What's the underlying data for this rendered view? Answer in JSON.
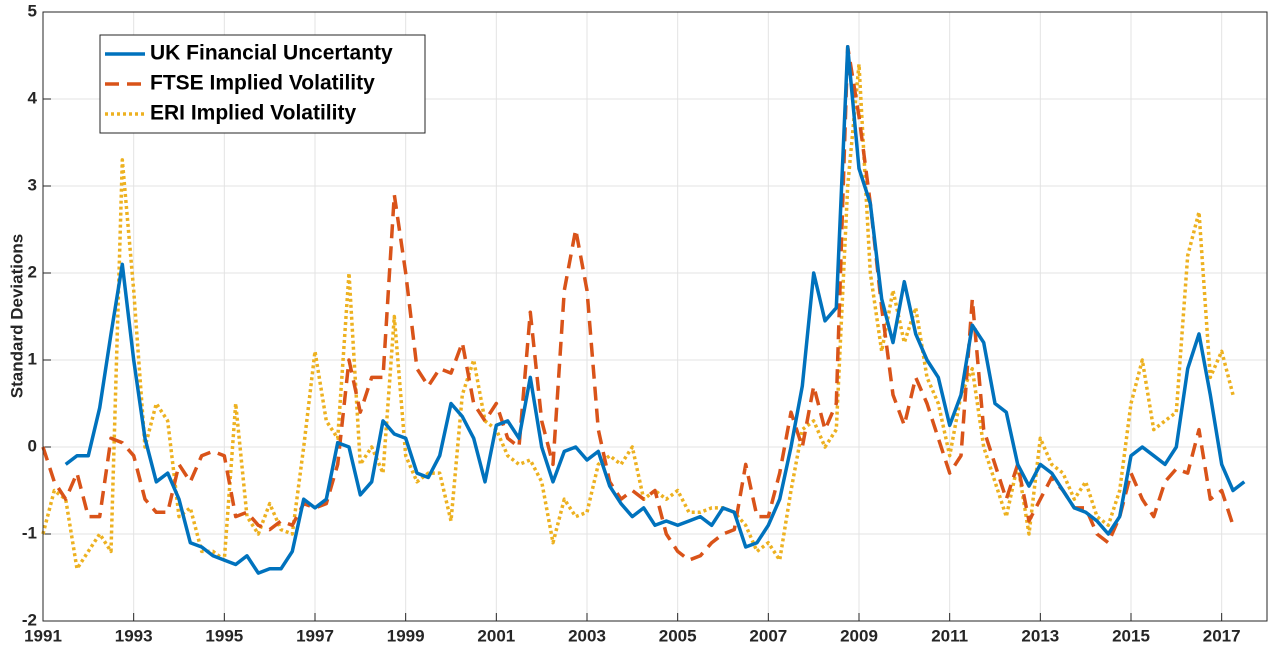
{
  "chart_data": {
    "type": "line",
    "ylabel": "Standard Deviations",
    "xlim": [
      1991,
      2018
    ],
    "xticks": [
      1991,
      1993,
      1995,
      1997,
      1999,
      2001,
      2003,
      2005,
      2007,
      2009,
      2011,
      2013,
      2015,
      2017
    ],
    "ylim": [
      -2,
      5
    ],
    "yticks": [
      -2,
      -1,
      0,
      1,
      2,
      3,
      4,
      5
    ],
    "grid": true,
    "legend": "upper left",
    "x": [
      1991,
      1991.25,
      1991.5,
      1991.75,
      1992,
      1992.25,
      1992.5,
      1992.75,
      1993,
      1993.25,
      1993.5,
      1993.75,
      1994,
      1994.25,
      1994.5,
      1994.75,
      1995,
      1995.25,
      1995.5,
      1995.75,
      1996,
      1996.25,
      1996.5,
      1996.75,
      1997,
      1997.25,
      1997.5,
      1997.75,
      1998,
      1998.25,
      1998.5,
      1998.75,
      1999,
      1999.25,
      1999.5,
      1999.75,
      2000,
      2000.25,
      2000.5,
      2000.75,
      2001,
      2001.25,
      2001.5,
      2001.75,
      2002,
      2002.25,
      2002.5,
      2002.75,
      2003,
      2003.25,
      2003.5,
      2003.75,
      2004,
      2004.25,
      2004.5,
      2004.75,
      2005,
      2005.25,
      2005.5,
      2005.75,
      2006,
      2006.25,
      2006.5,
      2006.75,
      2007,
      2007.25,
      2007.5,
      2007.75,
      2008,
      2008.25,
      2008.5,
      2008.75,
      2009,
      2009.25,
      2009.5,
      2009.75,
      2010,
      2010.25,
      2010.5,
      2010.75,
      2011,
      2011.25,
      2011.5,
      2011.75,
      2012,
      2012.25,
      2012.5,
      2012.75,
      2013,
      2013.25,
      2013.5,
      2013.75,
      2014,
      2014.25,
      2014.5,
      2014.75,
      2015,
      2015.25,
      2015.5,
      2015.75,
      2016,
      2016.25,
      2016.5,
      2016.75,
      2017,
      2017.25,
      2017.5
    ],
    "series": [
      {
        "name": "UK Financial Uncertanty",
        "color": "#0072bd",
        "style": "solid",
        "values": [
          null,
          null,
          -0.2,
          -0.1,
          -0.1,
          0.45,
          1.3,
          2.1,
          1.0,
          0.1,
          -0.4,
          -0.3,
          -0.6,
          -1.1,
          -1.15,
          -1.25,
          -1.3,
          -1.35,
          -1.25,
          -1.45,
          -1.4,
          -1.4,
          -1.2,
          -0.6,
          -0.7,
          -0.6,
          0.05,
          0.0,
          -0.55,
          -0.4,
          0.3,
          0.15,
          0.1,
          -0.3,
          -0.35,
          -0.1,
          0.5,
          0.35,
          0.1,
          -0.4,
          0.25,
          0.3,
          0.1,
          0.8,
          0.0,
          -0.4,
          -0.05,
          0.0,
          -0.15,
          -0.05,
          -0.45,
          -0.65,
          -0.8,
          -0.7,
          -0.9,
          -0.85,
          -0.9,
          -0.85,
          -0.8,
          -0.9,
          -0.7,
          -0.75,
          -1.15,
          -1.1,
          -0.9,
          -0.6,
          0.0,
          0.7,
          2.0,
          1.45,
          1.6,
          4.6,
          3.2,
          2.8,
          1.7,
          1.2,
          1.9,
          1.3,
          1.0,
          0.8,
          0.25,
          0.6,
          1.4,
          1.2,
          0.5,
          0.4,
          -0.2,
          -0.45,
          -0.2,
          -0.3,
          -0.5,
          -0.7,
          -0.75,
          -0.85,
          -1.0,
          -0.8,
          -0.1,
          0.0,
          -0.1,
          -0.2,
          0.0,
          0.9,
          1.3,
          0.6,
          -0.2,
          -0.5,
          -0.4
        ]
      },
      {
        "name": "FTSE Implied Volatility",
        "color": "#d95319",
        "style": "dashed",
        "values": [
          0.0,
          -0.4,
          -0.6,
          -0.3,
          -0.8,
          -0.8,
          0.1,
          0.05,
          -0.1,
          -0.6,
          -0.75,
          -0.75,
          -0.2,
          -0.4,
          -0.1,
          -0.05,
          -0.1,
          -0.8,
          -0.75,
          -0.9,
          -0.95,
          -0.85,
          -0.9,
          -0.65,
          -0.7,
          -0.65,
          -0.2,
          1.0,
          0.4,
          0.8,
          0.8,
          2.9,
          2.0,
          0.9,
          0.7,
          0.9,
          0.85,
          1.2,
          0.5,
          0.3,
          0.5,
          0.1,
          0.0,
          1.55,
          0.3,
          -0.2,
          1.8,
          2.5,
          1.8,
          0.2,
          -0.4,
          -0.6,
          -0.5,
          -0.6,
          -0.5,
          -1.0,
          -1.2,
          -1.3,
          -1.25,
          -1.1,
          -1.0,
          -0.95,
          -0.2,
          -0.8,
          -0.8,
          -0.3,
          0.4,
          0.0,
          0.7,
          0.2,
          0.5,
          4.6,
          3.8,
          2.8,
          1.6,
          0.6,
          0.25,
          0.8,
          0.5,
          0.1,
          -0.3,
          -0.1,
          1.7,
          0.2,
          -0.2,
          -0.6,
          -0.2,
          -0.85,
          -0.6,
          -0.35,
          -0.5,
          -0.7,
          -0.7,
          -1.0,
          -1.1,
          -0.8,
          -0.3,
          -0.6,
          -0.8,
          -0.4,
          -0.25,
          -0.3,
          0.2,
          -0.6,
          -0.5,
          -0.9,
          null
        ]
      },
      {
        "name": "ERI Implied Volatility",
        "color": "#edb120",
        "style": "dotted",
        "values": [
          -1.0,
          -0.5,
          -0.6,
          -1.4,
          -1.2,
          -1.0,
          -1.2,
          3.3,
          1.8,
          0.0,
          0.5,
          0.3,
          -0.8,
          -0.7,
          -1.2,
          -1.2,
          -1.3,
          0.5,
          -0.8,
          -1.0,
          -0.65,
          -0.95,
          -1.0,
          0.0,
          1.1,
          0.3,
          0.1,
          2.0,
          -0.2,
          0.0,
          -0.3,
          1.5,
          -0.1,
          -0.4,
          -0.3,
          -0.3,
          -0.85,
          0.6,
          1.0,
          0.3,
          0.2,
          -0.1,
          -0.2,
          -0.15,
          -0.4,
          -1.1,
          -0.6,
          -0.8,
          -0.75,
          -0.2,
          -0.1,
          -0.2,
          0.0,
          -0.6,
          -0.5,
          -0.6,
          -0.5,
          -0.75,
          -0.75,
          -0.7,
          -0.7,
          -0.75,
          -0.9,
          -1.2,
          -1.1,
          -1.3,
          -0.5,
          0.2,
          0.3,
          0.0,
          0.2,
          3.0,
          4.4,
          2.0,
          1.1,
          1.8,
          1.2,
          1.6,
          0.8,
          0.5,
          -0.1,
          0.6,
          0.9,
          0.0,
          -0.4,
          -0.8,
          -0.2,
          -1.0,
          0.1,
          -0.2,
          -0.3,
          -0.6,
          -0.4,
          -0.8,
          -0.9,
          -0.5,
          0.5,
          1.0,
          0.2,
          0.3,
          0.4,
          2.2,
          2.7,
          0.8,
          1.1,
          0.6,
          null
        ]
      }
    ]
  }
}
